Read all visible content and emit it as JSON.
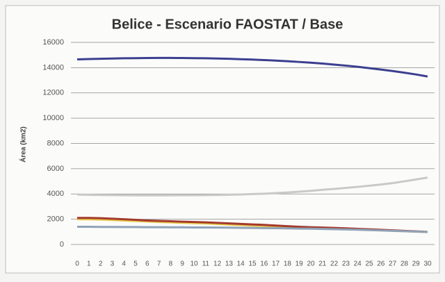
{
  "chart_data": {
    "type": "line",
    "title": "Belice - Escenario FAOSTAT / Base",
    "y_label": "Área (km2)",
    "x": [
      0,
      1,
      2,
      3,
      4,
      5,
      6,
      7,
      8,
      9,
      10,
      11,
      12,
      13,
      14,
      15,
      16,
      17,
      18,
      19,
      20,
      21,
      22,
      23,
      24,
      25,
      26,
      27,
      28,
      29,
      30
    ],
    "xlim": [
      0,
      30
    ],
    "ylim": [
      0,
      16000
    ],
    "yticks": [
      0,
      2000,
      4000,
      6000,
      8000,
      10000,
      12000,
      14000,
      16000
    ],
    "grid": true,
    "series": [
      {
        "color": "#3b3f8f",
        "values": [
          14650,
          14680,
          14700,
          14720,
          14740,
          14750,
          14760,
          14770,
          14770,
          14760,
          14750,
          14740,
          14720,
          14700,
          14670,
          14640,
          14600,
          14560,
          14510,
          14450,
          14390,
          14320,
          14240,
          14160,
          14070,
          13960,
          13850,
          13730,
          13600,
          13460,
          13300
        ]
      },
      {
        "color": "#c9c9c9",
        "values": [
          3950,
          3930,
          3920,
          3910,
          3900,
          3890,
          3890,
          3890,
          3890,
          3900,
          3900,
          3910,
          3920,
          3940,
          3960,
          3990,
          4020,
          4070,
          4120,
          4180,
          4250,
          4330,
          4400,
          4480,
          4560,
          4650,
          4750,
          4860,
          5000,
          5150,
          5300
        ]
      },
      {
        "color": "#e8c94a",
        "values": [
          2000,
          1990,
          1970,
          1940,
          1900,
          1860,
          1820,
          1780,
          1750,
          1720,
          1690,
          1660,
          1620,
          1580,
          1540,
          1500,
          1460,
          1420,
          1380,
          1350,
          1320,
          1290,
          1260,
          1230,
          1200,
          1170,
          1130,
          1090,
          1050,
          1020,
          980
        ]
      },
      {
        "color": "#a33a2c",
        "values": [
          2100,
          2100,
          2080,
          2040,
          2000,
          1950,
          1900,
          1870,
          1840,
          1810,
          1780,
          1750,
          1710,
          1670,
          1630,
          1590,
          1550,
          1500,
          1450,
          1400,
          1370,
          1340,
          1310,
          1280,
          1240,
          1200,
          1160,
          1120,
          1080,
          1040,
          1000
        ]
      },
      {
        "color": "#8fa3b8",
        "values": [
          1400,
          1400,
          1390,
          1390,
          1380,
          1380,
          1370,
          1370,
          1360,
          1360,
          1350,
          1350,
          1340,
          1330,
          1320,
          1310,
          1300,
          1290,
          1280,
          1260,
          1250,
          1230,
          1210,
          1190,
          1170,
          1140,
          1110,
          1080,
          1050,
          1020,
          990
        ]
      }
    ]
  }
}
